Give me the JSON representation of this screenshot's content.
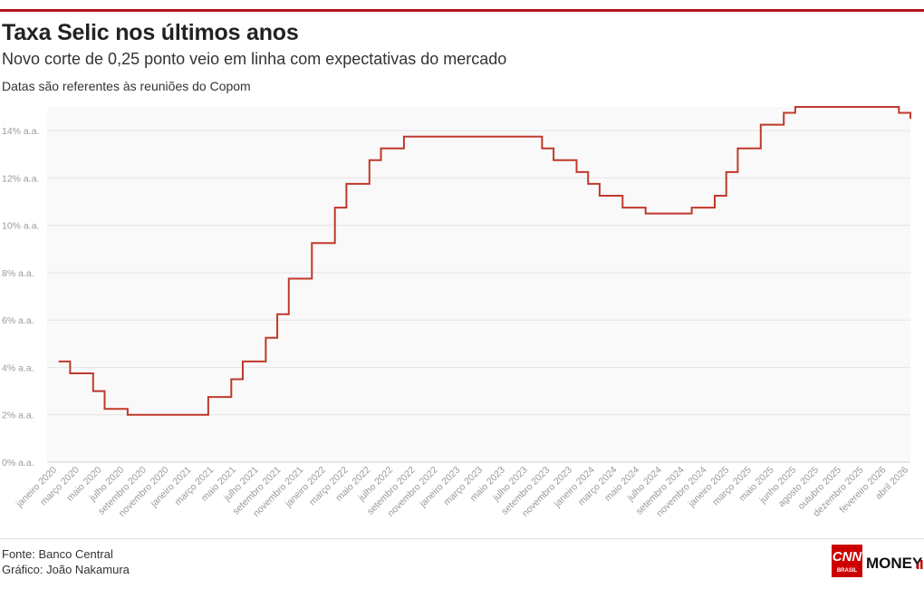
{
  "header": {
    "title": "Taxa Selic nos últimos anos",
    "subtitle": "Novo corte de 0,25 ponto veio em linha com expectativas do mercado",
    "note": "Datas são referentes às reuniões do Copom"
  },
  "footer": {
    "source": "Fonte: Banco Central",
    "credit": "Gráfico: João Nakamura",
    "logo_cnn": "CNN",
    "logo_brasil": "BRASIL",
    "logo_money": "MONEY"
  },
  "colors": {
    "line": "#c0392b",
    "accent_rule": "#b3171d",
    "grid": "#e6e6e6",
    "plot_bg": "#f9f9f9"
  },
  "chart_data": {
    "type": "line",
    "step": true,
    "title": "Taxa Selic nos últimos anos",
    "ylim": [
      0,
      15
    ],
    "y_ticks": [
      0,
      2,
      4,
      6,
      8,
      10,
      12,
      14
    ],
    "y_tick_labels": [
      "0% a.a.",
      "2% a.a.",
      "4% a.a.",
      "6% a.a.",
      "8% a.a.",
      "10% a.a.",
      "12% a.a.",
      "14% a.a."
    ],
    "x_tick_labels": [
      "janeiro 2020",
      "março 2020",
      "maio 2020",
      "julho 2020",
      "setembro 2020",
      "novembro 2020",
      "janeiro 2021",
      "março 2021",
      "maio 2021",
      "julho 2021",
      "setembro 2021",
      "novembro 2021",
      "janeiro 2022",
      "março 2022",
      "maio 2022",
      "julho 2022",
      "setembro 2022",
      "novembro 2022",
      "janeiro 2023",
      "março 2023",
      "maio 2023",
      "julho 2023",
      "setembro 2023",
      "novembro 2023",
      "janeiro 2024",
      "março 2024",
      "maio 2024",
      "julho 2024",
      "setembro 2024",
      "novembro 2024",
      "janeiro 2025",
      "março 2025",
      "maio 2025",
      "junho 2025",
      "agosto 2025",
      "outubro 2025",
      "dezembro 2025",
      "fevereiro 2026",
      "abril 2026"
    ],
    "series": [
      {
        "x": [
          "2020-02",
          "2020-03",
          "2020-05",
          "2020-06",
          "2020-08",
          "2020-09",
          "2020-12",
          "2021-03",
          "2021-05",
          "2021-06",
          "2021-08",
          "2021-09",
          "2021-10",
          "2021-12",
          "2022-02",
          "2022-03",
          "2022-05",
          "2022-06",
          "2022-08",
          "2022-09",
          "2022-12",
          "2023-03",
          "2023-05",
          "2023-08",
          "2023-09",
          "2023-11",
          "2023-12",
          "2024-01",
          "2024-03",
          "2024-05",
          "2024-06",
          "2024-09",
          "2024-11",
          "2024-12",
          "2025-01",
          "2025-03",
          "2025-05",
          "2025-06",
          "2025-07",
          "2025-09",
          "2025-11",
          "2025-12",
          "2026-01",
          "2026-03",
          "2026-04"
        ],
        "y": [
          4.25,
          3.75,
          3.0,
          2.25,
          2.0,
          2.0,
          2.0,
          2.75,
          3.5,
          4.25,
          5.25,
          6.25,
          7.75,
          9.25,
          10.75,
          11.75,
          12.75,
          13.25,
          13.75,
          13.75,
          13.75,
          13.75,
          13.75,
          13.25,
          12.75,
          12.25,
          11.75,
          11.25,
          10.75,
          10.5,
          10.5,
          10.75,
          11.25,
          12.25,
          13.25,
          14.25,
          14.75,
          15.0,
          15.0,
          15.0,
          15.0,
          15.0,
          15.0,
          14.75,
          14.5
        ]
      }
    ],
    "grid": true
  }
}
